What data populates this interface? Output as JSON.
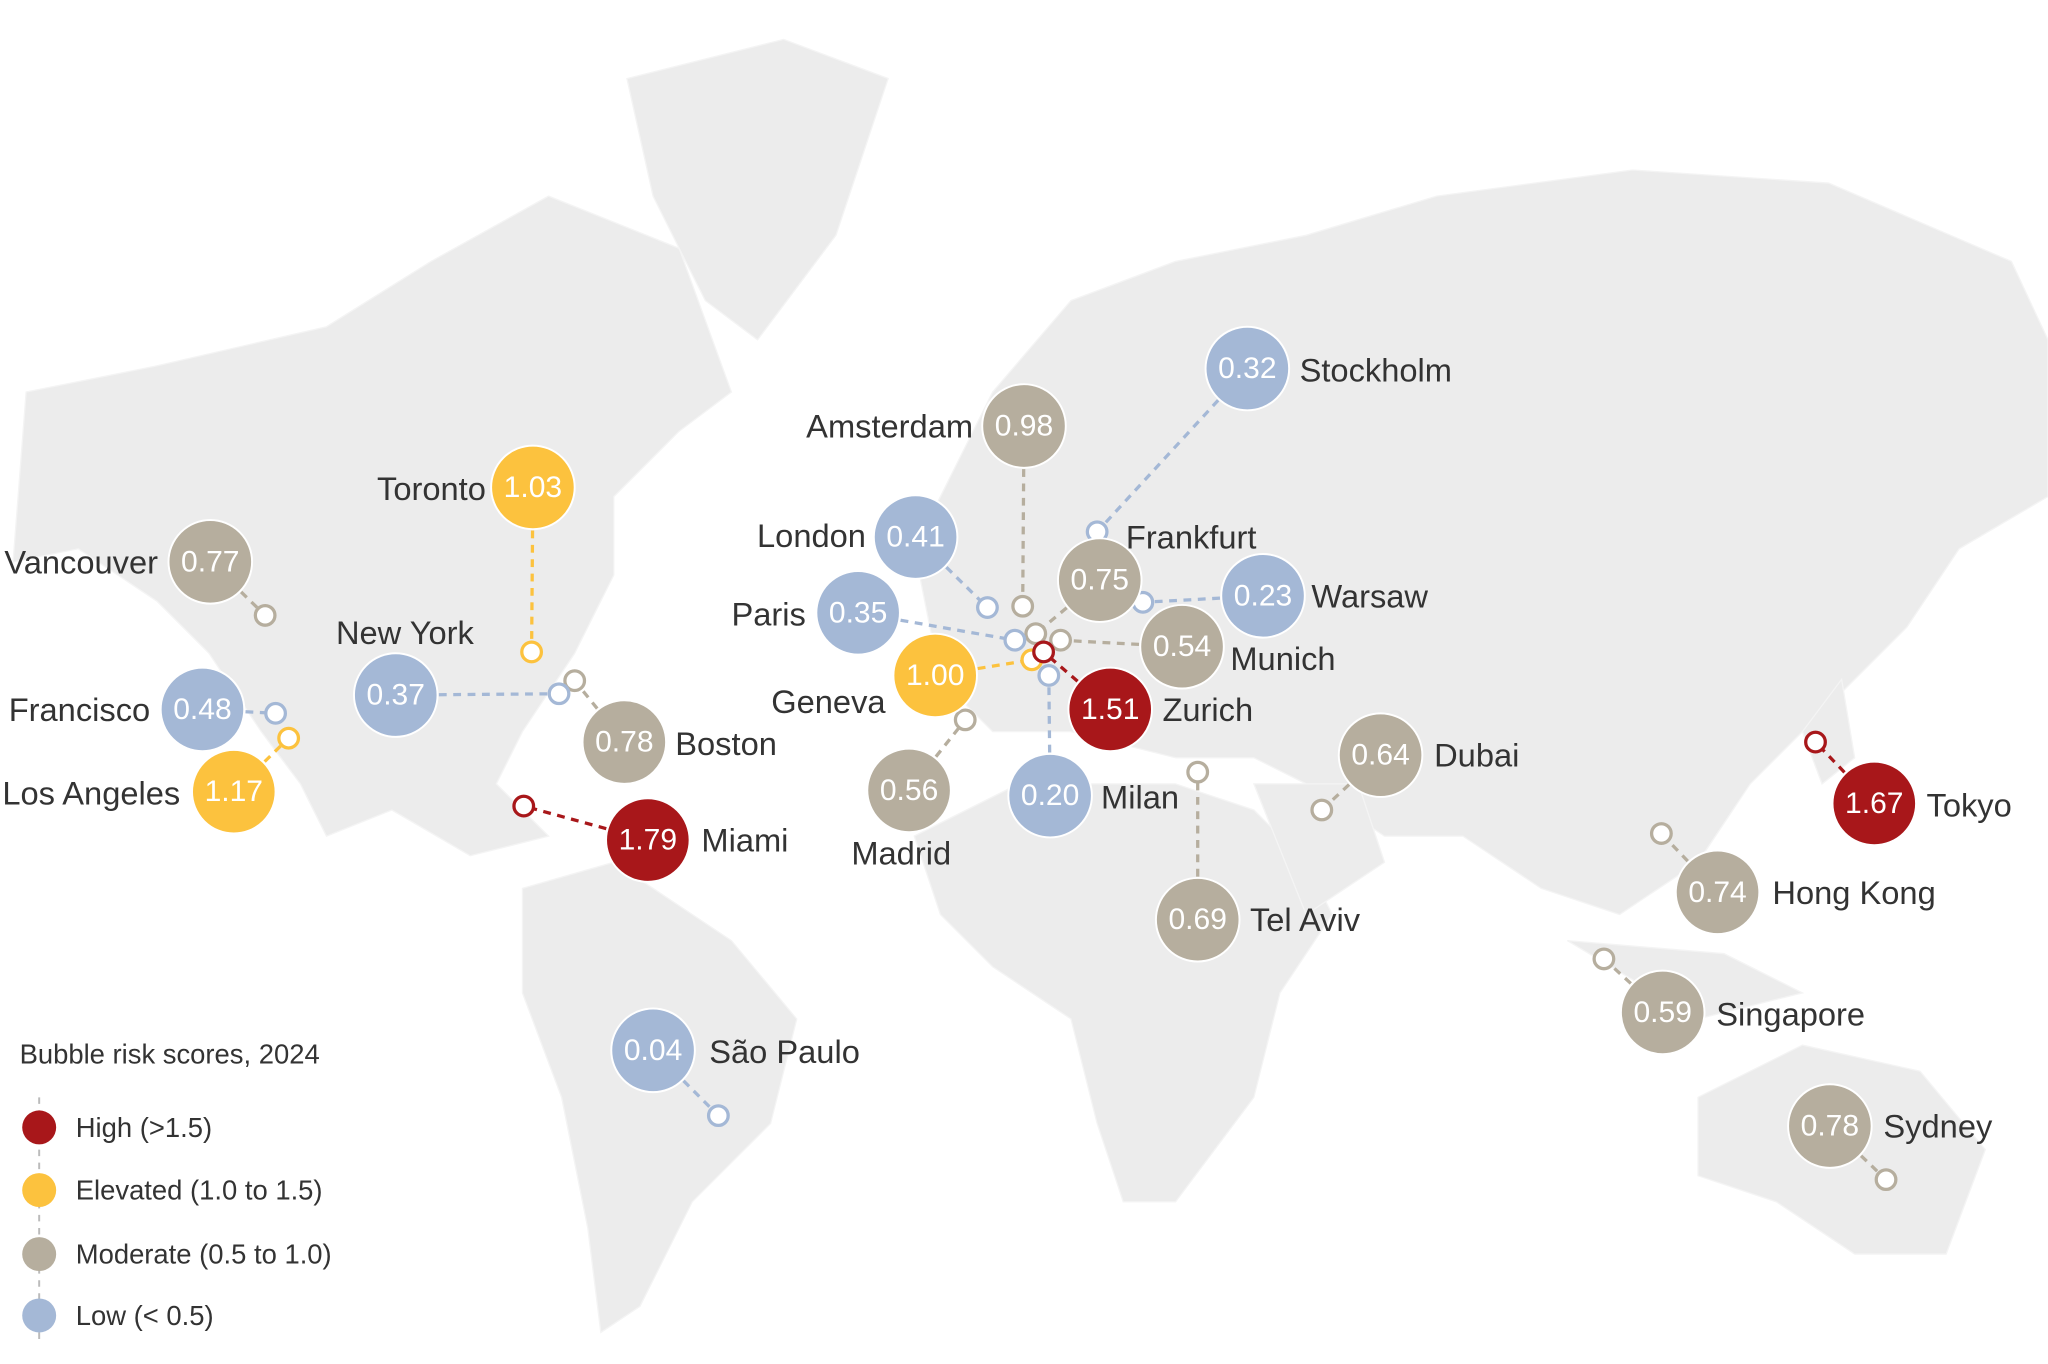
{
  "legend": {
    "title": "Bubble risk scores, 2024",
    "items": [
      {
        "key": "high",
        "label": "High (>1.5)",
        "color": "#a8171a"
      },
      {
        "key": "elevated",
        "label": "Elevated (1.0 to 1.5)",
        "color": "#fcc23e"
      },
      {
        "key": "moderate",
        "label": "Moderate (0.5 to 1.0)",
        "color": "#b6ae9e"
      },
      {
        "key": "low",
        "label": "Low (< 0.5)",
        "color": "#a4b8d6"
      }
    ]
  },
  "cities": [
    {
      "name": "Stockholm",
      "score": "0.32",
      "category": "low"
    },
    {
      "name": "Amsterdam",
      "score": "0.98",
      "category": "moderate"
    },
    {
      "name": "London",
      "score": "0.41",
      "category": "low"
    },
    {
      "name": "Frankfurt",
      "score": "0.75",
      "category": "moderate"
    },
    {
      "name": "Warsaw",
      "score": "0.23",
      "category": "low"
    },
    {
      "name": "Paris",
      "score": "0.35",
      "category": "low"
    },
    {
      "name": "Munich",
      "score": "0.54",
      "category": "moderate"
    },
    {
      "name": "Geneva",
      "score": "1.00",
      "category": "elevated"
    },
    {
      "name": "Zurich",
      "score": "1.51",
      "category": "high"
    },
    {
      "name": "Milan",
      "score": "0.20",
      "category": "low"
    },
    {
      "name": "Madrid",
      "score": "0.56",
      "category": "moderate"
    },
    {
      "name": "Tel Aviv",
      "score": "0.69",
      "category": "moderate"
    },
    {
      "name": "Dubai",
      "score": "0.64",
      "category": "moderate"
    },
    {
      "name": "Tokyo",
      "score": "1.67",
      "category": "high"
    },
    {
      "name": "Hong Kong",
      "score": "0.74",
      "category": "moderate"
    },
    {
      "name": "Singapore",
      "score": "0.59",
      "category": "moderate"
    },
    {
      "name": "Sydney",
      "score": "0.78",
      "category": "moderate"
    },
    {
      "name": "São Paulo",
      "score": "0.04",
      "category": "low"
    },
    {
      "name": "Miami",
      "score": "1.79",
      "category": "high"
    },
    {
      "name": "Boston",
      "score": "0.78",
      "category": "moderate"
    },
    {
      "name": "New York",
      "score": "0.37",
      "category": "low"
    },
    {
      "name": "Toronto",
      "score": "1.03",
      "category": "elevated"
    },
    {
      "name": "Vancouver",
      "score": "0.77",
      "category": "moderate"
    },
    {
      "name": "San Francisco",
      "score": "0.48",
      "category": "low"
    },
    {
      "name": "Los Angeles",
      "score": "1.17",
      "category": "elevated"
    }
  ]
}
